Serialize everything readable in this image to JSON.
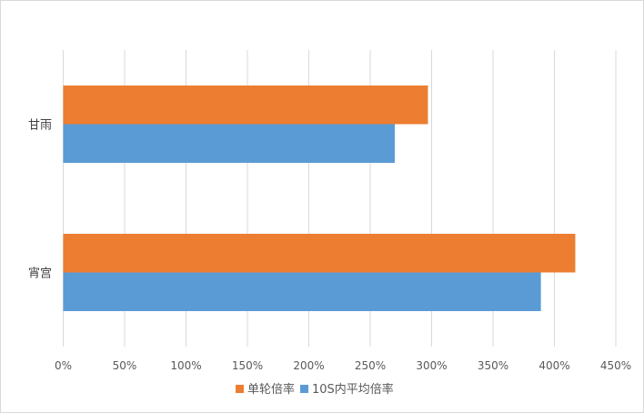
{
  "chart_data": {
    "type": "bar",
    "orientation": "horizontal",
    "categories": [
      "甘雨",
      "宵宫"
    ],
    "series": [
      {
        "name": "单轮倍率",
        "color": "#ED7D31",
        "values": [
          297,
          417
        ]
      },
      {
        "name": "10S内平均倍率",
        "color": "#5B9BD5",
        "values": [
          270,
          389
        ]
      }
    ],
    "xlim": [
      0,
      450
    ],
    "xticks": [
      "0%",
      "50%",
      "100%",
      "150%",
      "200%",
      "250%",
      "300%",
      "350%",
      "400%",
      "450%"
    ],
    "unit": "%",
    "grid": "vertical",
    "legend": "bottom"
  }
}
